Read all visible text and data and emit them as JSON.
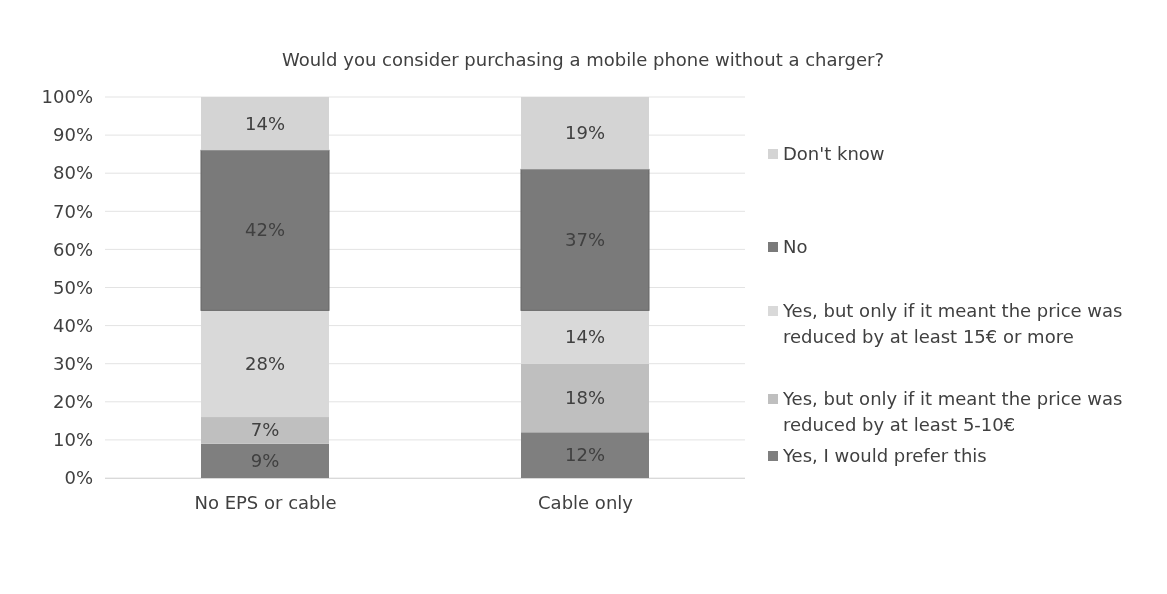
{
  "chart_data": {
    "type": "bar",
    "title": "Would you consider purchasing a mobile phone without a charger?",
    "categories": [
      "No EPS or cable",
      "Cable only"
    ],
    "stacked": true,
    "legend": "right",
    "grid": "y",
    "ylim": [
      0,
      100
    ],
    "yticks": [
      {
        "value": 0,
        "label": "0%"
      },
      {
        "value": 10,
        "label": "10%"
      },
      {
        "value": 20,
        "label": "20%"
      },
      {
        "value": 30,
        "label": "30%"
      },
      {
        "value": 40,
        "label": "40%"
      },
      {
        "value": 50,
        "label": "50%"
      },
      {
        "value": 60,
        "label": "60%"
      },
      {
        "value": 70,
        "label": "70%"
      },
      {
        "value": 80,
        "label": "80%"
      },
      {
        "value": 90,
        "label": "90%"
      },
      {
        "value": 100,
        "label": "100%"
      }
    ],
    "series": [
      {
        "name": "Yes, I would prefer this",
        "color": "#7f7f7f",
        "values": [
          9,
          12
        ],
        "value_labels": [
          "9%",
          "12%"
        ]
      },
      {
        "name": "Yes, but only if it meant the price was reduced by at least 5-10€",
        "color": "#bfbfbf",
        "values": [
          7,
          18
        ],
        "value_labels": [
          "7%",
          "18%"
        ]
      },
      {
        "name": "Yes, but only if it meant the price was reduced by at least 15€ or more",
        "color": "#d9d9d9",
        "values": [
          28,
          14
        ],
        "value_labels": [
          "28%",
          "14%"
        ]
      },
      {
        "name": "No",
        "color": "#7a7a7a",
        "values": [
          42,
          37
        ],
        "value_labels": [
          "42%",
          "37%"
        ]
      },
      {
        "name": "Don't know",
        "color": "#d4d4d4",
        "values": [
          14,
          19
        ],
        "value_labels": [
          "14%",
          "19%"
        ]
      }
    ]
  }
}
